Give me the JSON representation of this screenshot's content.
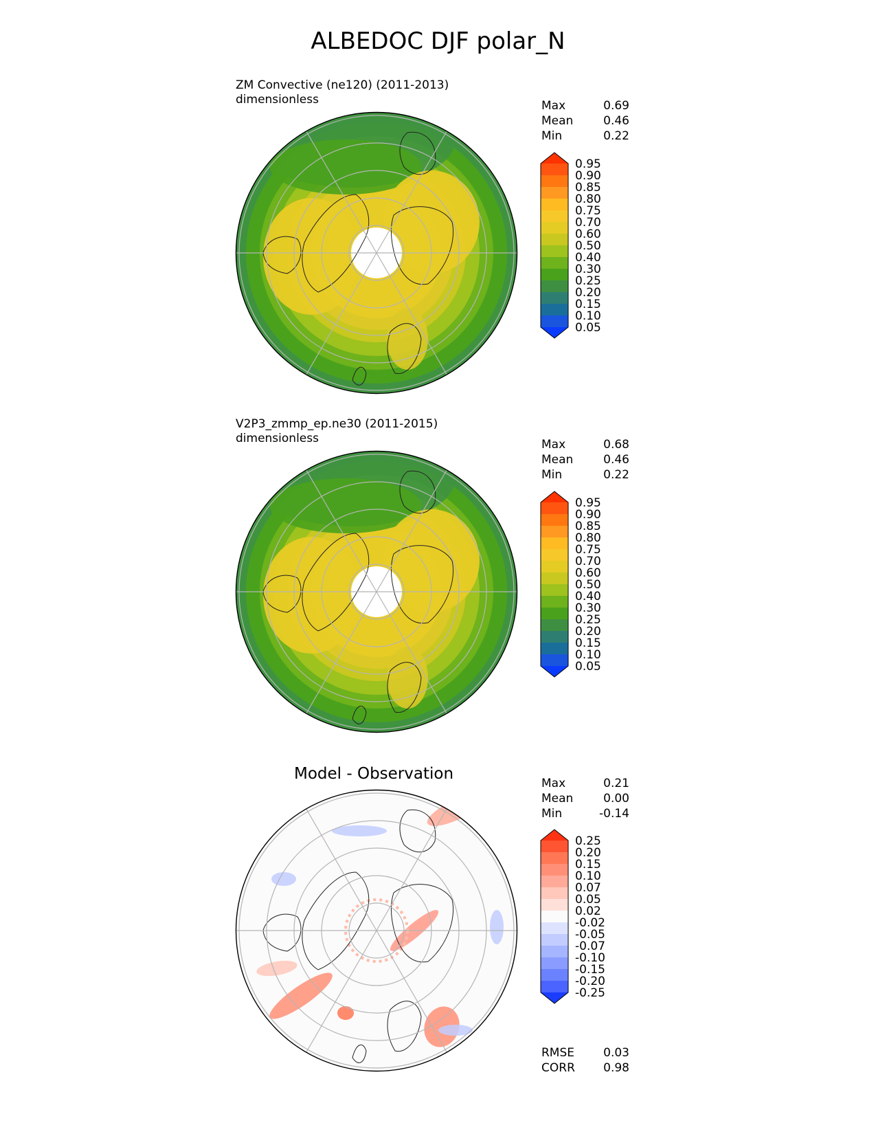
{
  "title": "ALBEDOC DJF polar_N",
  "panels": [
    {
      "title_line1": "ZM Convective (ne120) (2011-2013)",
      "title_line2": "dimensionless",
      "stats": [
        {
          "label": "Max",
          "value": "0.69"
        },
        {
          "label": "Mean",
          "value": "0.46"
        },
        {
          "label": "Min",
          "value": "0.22"
        }
      ]
    },
    {
      "title_line1": "V2P3_zmmp_ep.ne30 (2011-2015)",
      "title_line2": "dimensionless",
      "stats": [
        {
          "label": "Max",
          "value": "0.68"
        },
        {
          "label": "Mean",
          "value": "0.46"
        },
        {
          "label": "Min",
          "value": "0.22"
        }
      ]
    },
    {
      "title": "Model - Observation",
      "stats": [
        {
          "label": "Max",
          "value": "0.21"
        },
        {
          "label": "Mean",
          "value": "0.00"
        },
        {
          "label": "Min",
          "value": "-0.14"
        }
      ],
      "metrics": [
        {
          "label": "RMSE",
          "value": "0.03"
        },
        {
          "label": "CORR",
          "value": "0.98"
        }
      ]
    }
  ],
  "chart_data": {
    "type": "heatmap",
    "projection": "north polar stereographic",
    "colorbar_levels": [
      "0.95",
      "0.90",
      "0.85",
      "0.80",
      "0.75",
      "0.70",
      "0.60",
      "0.50",
      "0.40",
      "0.30",
      "0.25",
      "0.20",
      "0.15",
      "0.10",
      "0.05"
    ],
    "colorbar_colors": [
      "#ff3300",
      "#ff5511",
      "#ff7711",
      "#ff9922",
      "#ffbb22",
      "#f6c82a",
      "#e4cc24",
      "#c8c820",
      "#9ec21e",
      "#6eb21c",
      "#4aa21c",
      "#3f8f42",
      "#2e7f72",
      "#1a6f9a",
      "#1a55dd",
      "#0a3cff"
    ],
    "diff_colorbar_levels": [
      "0.25",
      "0.20",
      "0.15",
      "0.10",
      "0.07",
      "0.05",
      "0.02",
      "-0.02",
      "-0.05",
      "-0.07",
      "-0.10",
      "-0.15",
      "-0.20",
      "-0.25"
    ],
    "diff_colorbar_colors": [
      "#ff3311",
      "#ff5533",
      "#ff7755",
      "#ff8f77",
      "#ffaa99",
      "#ffc8bb",
      "#ffe0d8",
      "#fbfbfb",
      "#dde3ff",
      "#c2ccff",
      "#a5b5ff",
      "#8a9cff",
      "#6b82ff",
      "#4b63ff",
      "#1a3cff"
    ]
  }
}
